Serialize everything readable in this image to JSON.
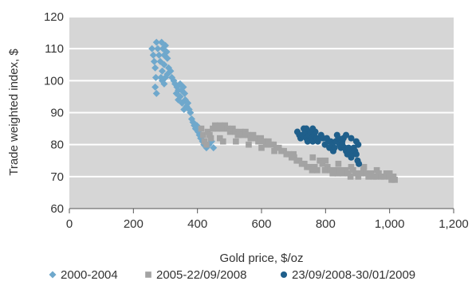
{
  "chart_data": {
    "type": "scatter",
    "xlabel": "Gold price, $/oz",
    "ylabel": "Trade weighted index, $",
    "xlim": [
      0,
      1200
    ],
    "ylim": [
      60,
      120
    ],
    "xticks": [
      0,
      200,
      400,
      600,
      800,
      1000,
      1200
    ],
    "xtick_labels": [
      "0",
      "200",
      "400",
      "600",
      "800",
      "1,000",
      "1,200"
    ],
    "yticks": [
      60,
      70,
      80,
      90,
      100,
      110,
      120
    ],
    "ytick_labels": [
      "60",
      "70",
      "80",
      "90",
      "100",
      "110",
      "120"
    ],
    "grid": "horizontal",
    "plot_background": "#d6d6d6",
    "legend_position": "bottom",
    "series": [
      {
        "name": "2000-2004",
        "marker": "diamond",
        "color": "#6fa8cc",
        "points": [
          [
            258,
            110
          ],
          [
            262,
            108
          ],
          [
            265,
            106
          ],
          [
            268,
            104
          ],
          [
            270,
            101
          ],
          [
            268,
            98
          ],
          [
            272,
            96
          ],
          [
            272,
            112
          ],
          [
            276,
            110
          ],
          [
            280,
            108
          ],
          [
            284,
            106
          ],
          [
            288,
            112
          ],
          [
            292,
            110
          ],
          [
            296,
            108
          ],
          [
            300,
            111
          ],
          [
            304,
            109
          ],
          [
            306,
            107
          ],
          [
            296,
            105
          ],
          [
            290,
            103
          ],
          [
            286,
            101
          ],
          [
            290,
            100
          ],
          [
            296,
            99
          ],
          [
            300,
            101
          ],
          [
            306,
            102
          ],
          [
            310,
            104
          ],
          [
            316,
            103
          ],
          [
            320,
            101
          ],
          [
            326,
            100
          ],
          [
            330,
            99
          ],
          [
            336,
            98
          ],
          [
            340,
            97
          ],
          [
            346,
            99
          ],
          [
            350,
            97
          ],
          [
            356,
            98
          ],
          [
            360,
            96
          ],
          [
            362,
            94
          ],
          [
            366,
            92
          ],
          [
            370,
            93
          ],
          [
            374,
            91
          ],
          [
            378,
            90
          ],
          [
            382,
            88
          ],
          [
            386,
            87
          ],
          [
            390,
            86
          ],
          [
            394,
            85
          ],
          [
            398,
            86
          ],
          [
            402,
            84
          ],
          [
            406,
            83
          ],
          [
            410,
            82
          ],
          [
            416,
            81
          ],
          [
            420,
            80
          ],
          [
            428,
            79
          ],
          [
            436,
            80
          ],
          [
            444,
            81
          ],
          [
            450,
            79
          ],
          [
            346,
            95
          ],
          [
            352,
            93
          ],
          [
            358,
            91
          ],
          [
            340,
            94
          ],
          [
            334,
            96
          ]
        ]
      },
      {
        "name": "2005-22/09/2008",
        "marker": "square",
        "color": "#a3a3a3",
        "points": [
          [
            412,
            85
          ],
          [
            418,
            83
          ],
          [
            422,
            81
          ],
          [
            428,
            80
          ],
          [
            432,
            84
          ],
          [
            438,
            83
          ],
          [
            442,
            82
          ],
          [
            448,
            85
          ],
          [
            455,
            86
          ],
          [
            462,
            85
          ],
          [
            470,
            86
          ],
          [
            478,
            85
          ],
          [
            486,
            86
          ],
          [
            494,
            85
          ],
          [
            502,
            84
          ],
          [
            510,
            85
          ],
          [
            518,
            84
          ],
          [
            526,
            83
          ],
          [
            534,
            84
          ],
          [
            542,
            83
          ],
          [
            550,
            84
          ],
          [
            558,
            83
          ],
          [
            566,
            82
          ],
          [
            574,
            83
          ],
          [
            582,
            82
          ],
          [
            590,
            81
          ],
          [
            598,
            82
          ],
          [
            606,
            81
          ],
          [
            614,
            80
          ],
          [
            622,
            81
          ],
          [
            630,
            80
          ],
          [
            638,
            80
          ],
          [
            646,
            79
          ],
          [
            654,
            79
          ],
          [
            662,
            78
          ],
          [
            670,
            78
          ],
          [
            678,
            77
          ],
          [
            686,
            77
          ],
          [
            694,
            76
          ],
          [
            702,
            76
          ],
          [
            710,
            75
          ],
          [
            718,
            75
          ],
          [
            726,
            74
          ],
          [
            734,
            74
          ],
          [
            742,
            73
          ],
          [
            750,
            73
          ],
          [
            758,
            72
          ],
          [
            766,
            73
          ],
          [
            774,
            72
          ],
          [
            782,
            75
          ],
          [
            790,
            74
          ],
          [
            798,
            72
          ],
          [
            806,
            73
          ],
          [
            814,
            72
          ],
          [
            822,
            71
          ],
          [
            830,
            72
          ],
          [
            838,
            71
          ],
          [
            846,
            72
          ],
          [
            854,
            71
          ],
          [
            862,
            72
          ],
          [
            870,
            71
          ],
          [
            878,
            70
          ],
          [
            886,
            72
          ],
          [
            894,
            71
          ],
          [
            902,
            70
          ],
          [
            910,
            71
          ],
          [
            918,
            72
          ],
          [
            926,
            71
          ],
          [
            934,
            70
          ],
          [
            942,
            71
          ],
          [
            950,
            70
          ],
          [
            958,
            70
          ],
          [
            966,
            71
          ],
          [
            974,
            70
          ],
          [
            982,
            70
          ],
          [
            990,
            71
          ],
          [
            998,
            70
          ],
          [
            1006,
            69
          ],
          [
            1012,
            70
          ],
          [
            1016,
            69
          ],
          [
            470,
            82
          ],
          [
            480,
            81
          ],
          [
            520,
            81
          ],
          [
            560,
            80
          ],
          [
            600,
            79
          ],
          [
            640,
            78
          ],
          [
            700,
            77
          ],
          [
            760,
            76
          ],
          [
            800,
            75
          ],
          [
            840,
            74
          ],
          [
            880,
            73
          ],
          [
            920,
            73
          ],
          [
            960,
            72
          ],
          [
            1000,
            71
          ]
        ]
      },
      {
        "name": "23/09/2008-30/01/2009",
        "marker": "circle",
        "color": "#1f5f8b",
        "points": [
          [
            712,
            84
          ],
          [
            718,
            83
          ],
          [
            722,
            82
          ],
          [
            728,
            83
          ],
          [
            732,
            85
          ],
          [
            736,
            84
          ],
          [
            740,
            82
          ],
          [
            744,
            81
          ],
          [
            748,
            83
          ],
          [
            752,
            84
          ],
          [
            756,
            82
          ],
          [
            760,
            81
          ],
          [
            764,
            83
          ],
          [
            768,
            84
          ],
          [
            772,
            82
          ],
          [
            776,
            81
          ],
          [
            780,
            82
          ],
          [
            786,
            83
          ],
          [
            792,
            82
          ],
          [
            798,
            80
          ],
          [
            804,
            82
          ],
          [
            808,
            81
          ],
          [
            812,
            79
          ],
          [
            816,
            81
          ],
          [
            820,
            80
          ],
          [
            824,
            78
          ],
          [
            828,
            79
          ],
          [
            832,
            81
          ],
          [
            836,
            83
          ],
          [
            840,
            82
          ],
          [
            844,
            80
          ],
          [
            848,
            79
          ],
          [
            852,
            81
          ],
          [
            856,
            82
          ],
          [
            860,
            79
          ],
          [
            864,
            78
          ],
          [
            868,
            77
          ],
          [
            872,
            79
          ],
          [
            876,
            78
          ],
          [
            880,
            76
          ],
          [
            884,
            77
          ],
          [
            888,
            79
          ],
          [
            892,
            78
          ],
          [
            896,
            77
          ],
          [
            900,
            75
          ],
          [
            904,
            74
          ],
          [
            896,
            81
          ],
          [
            902,
            80
          ],
          [
            880,
            82
          ],
          [
            864,
            83
          ],
          [
            852,
            80
          ],
          [
            740,
            85
          ],
          [
            760,
            85
          ]
        ]
      }
    ]
  }
}
